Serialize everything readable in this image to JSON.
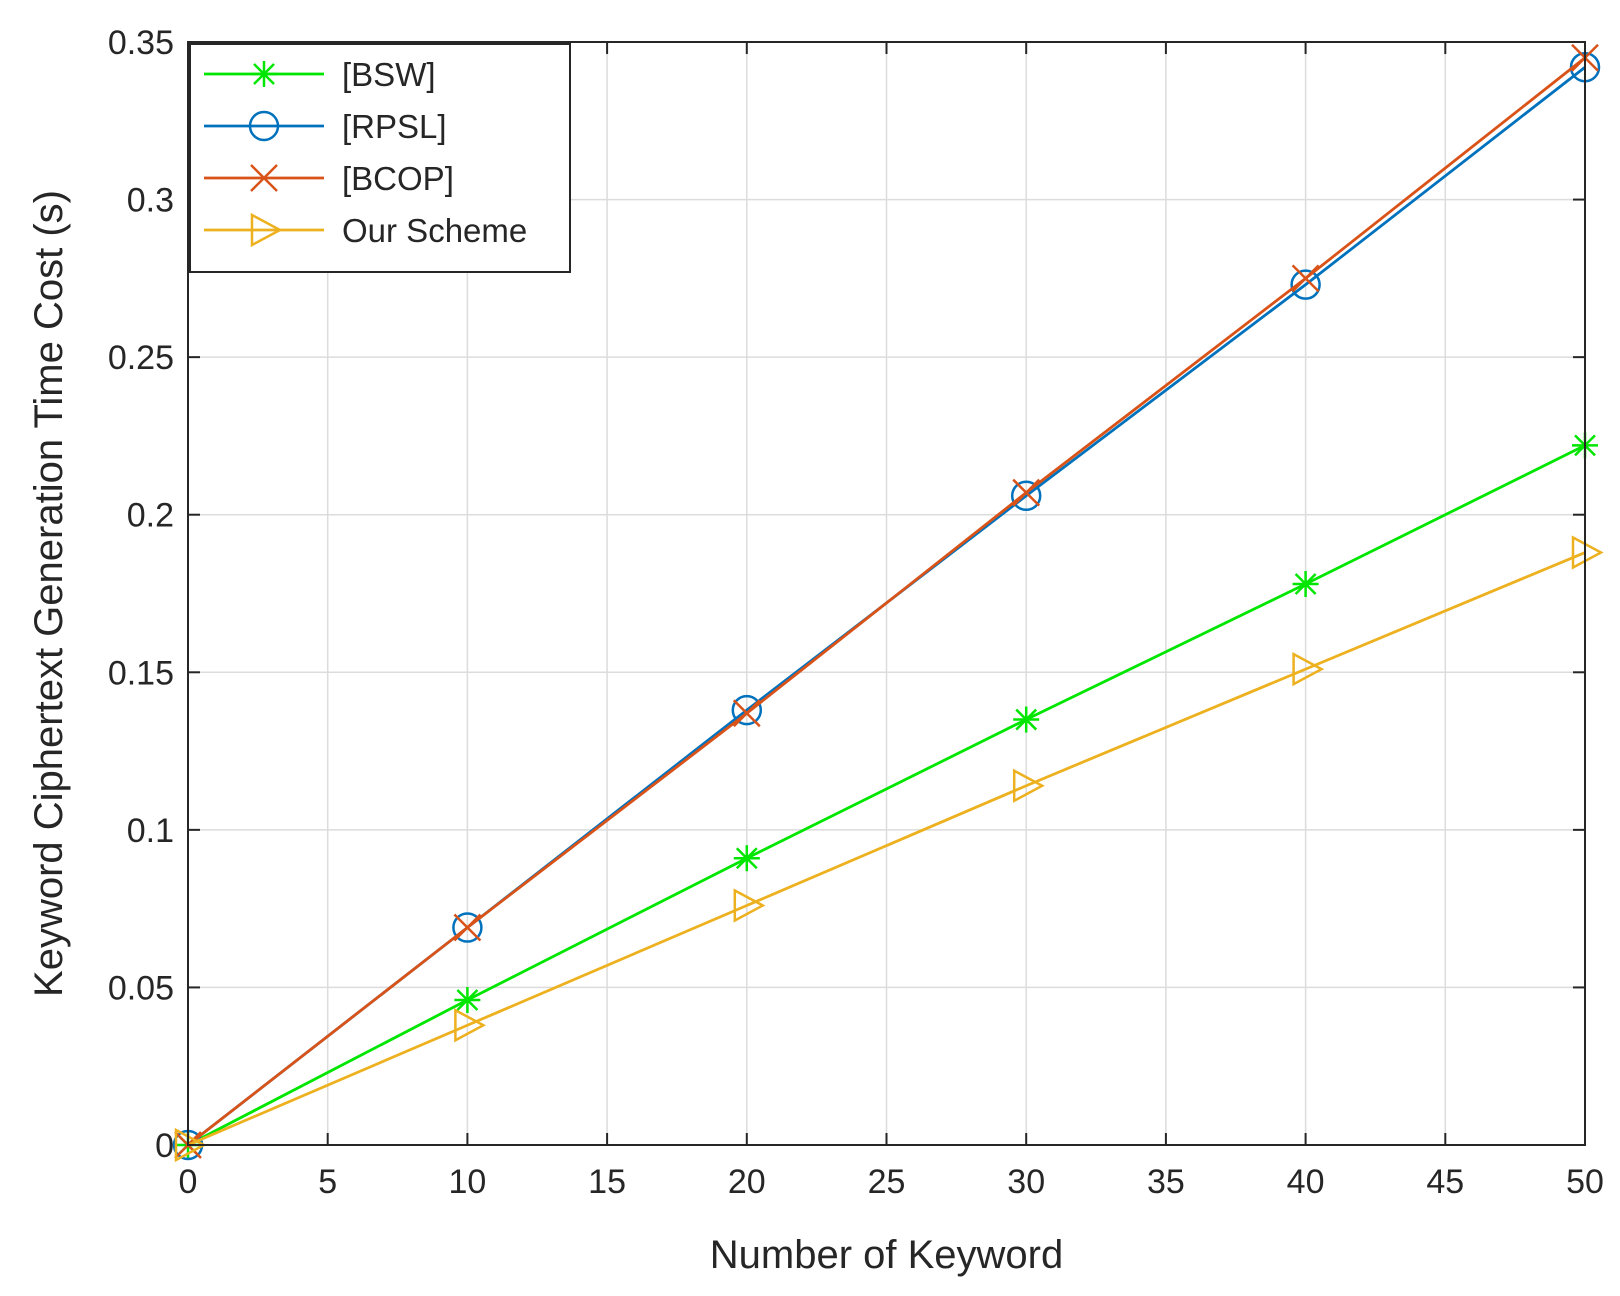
{
  "chart_data": {
    "type": "line",
    "title": "",
    "xlabel": "Number of Keyword",
    "ylabel": "Keyword Ciphertext Generation Time Cost (s)",
    "xlim": [
      0,
      50
    ],
    "ylim": [
      0,
      0.35
    ],
    "xticks": [
      0,
      5,
      10,
      15,
      20,
      25,
      30,
      35,
      40,
      45,
      50
    ],
    "xtick_labels": [
      "0",
      "5",
      "10",
      "15",
      "20",
      "25",
      "30",
      "35",
      "40",
      "45",
      "50"
    ],
    "yticks": [
      0,
      0.05,
      0.1,
      0.15,
      0.2,
      0.25,
      0.3,
      0.35
    ],
    "ytick_labels": [
      "0",
      "0.05",
      "0.1",
      "0.15",
      "0.2",
      "0.25",
      "0.3",
      "0.35"
    ],
    "grid": true,
    "legend_position": "top-left",
    "x": [
      0,
      10,
      20,
      30,
      40,
      50
    ],
    "series": [
      {
        "name": "[BSW]",
        "color": "#00e600",
        "marker": "asterisk",
        "values": [
          0,
          0.046,
          0.091,
          0.135,
          0.178,
          0.222
        ]
      },
      {
        "name": "[RPSL]",
        "color": "#0072bd",
        "marker": "circle",
        "values": [
          0,
          0.069,
          0.138,
          0.206,
          0.273,
          0.342
        ]
      },
      {
        "name": "[BCOP]",
        "color": "#d95319",
        "marker": "x",
        "values": [
          0,
          0.069,
          0.137,
          0.207,
          0.275,
          0.345
        ]
      },
      {
        "name": "Our Scheme",
        "color": "#edb120",
        "marker": "triangle-right",
        "values": [
          0,
          0.038,
          0.076,
          0.114,
          0.151,
          0.188
        ]
      }
    ]
  }
}
